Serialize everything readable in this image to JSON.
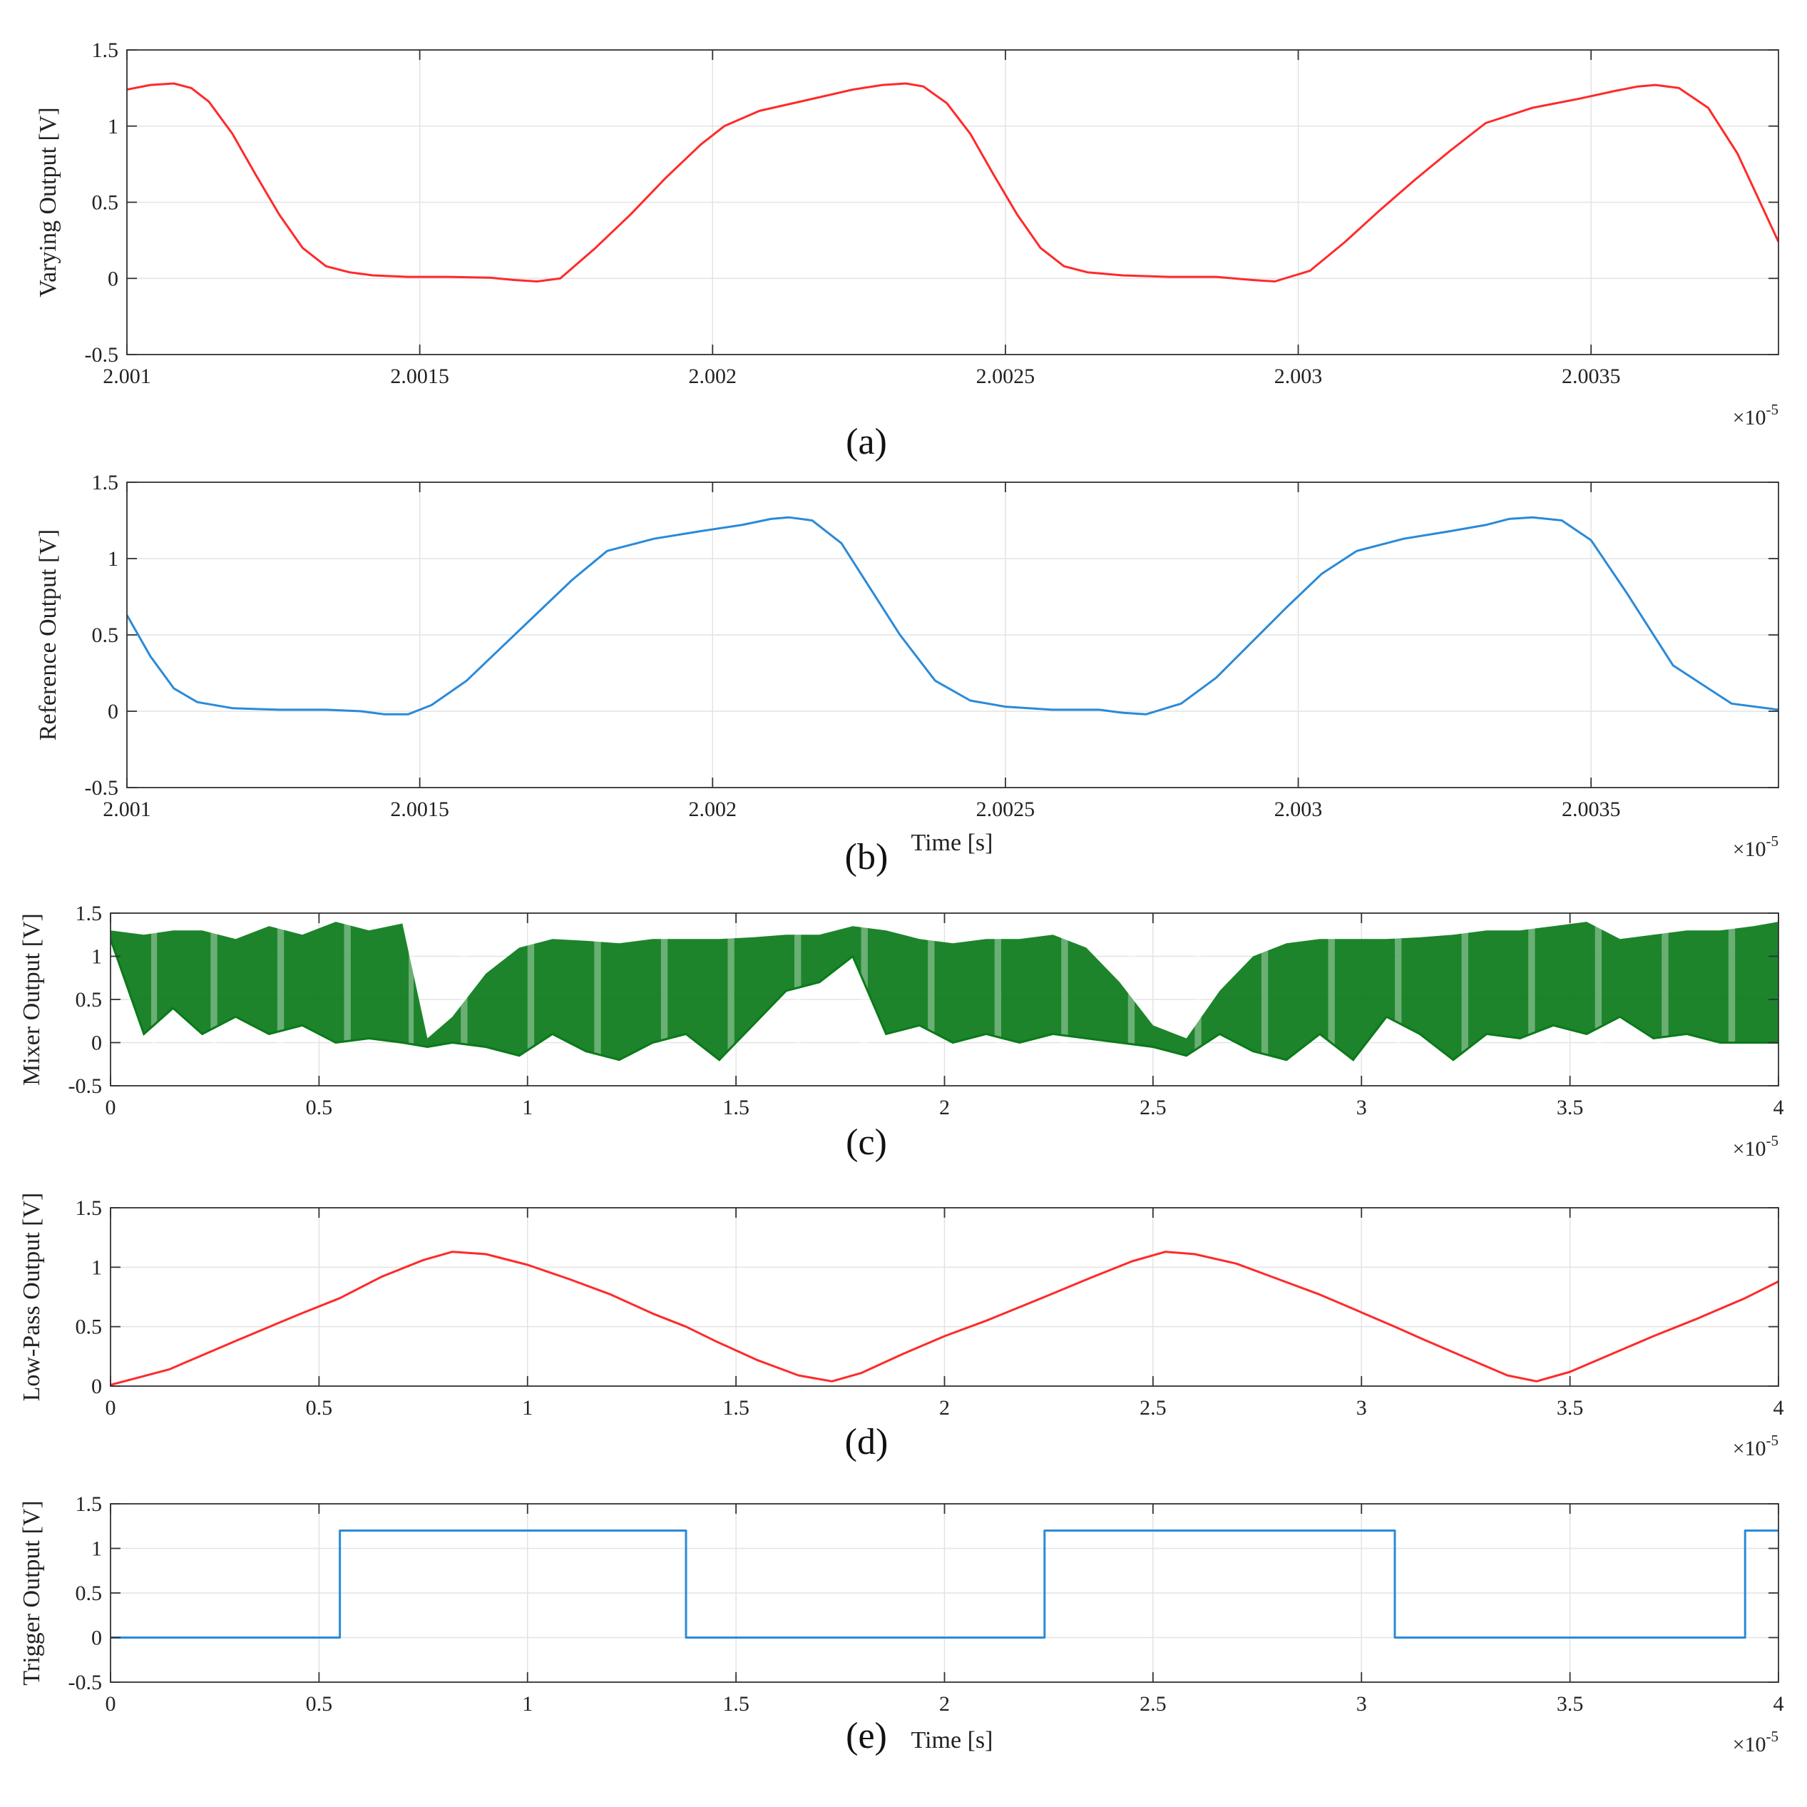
{
  "chart_data": [
    {
      "id": "a",
      "type": "line",
      "panel_label": "(a)",
      "xlabel": "",
      "ylabel": "Varying Output [V]",
      "xlim": [
        2.001,
        2.00382
      ],
      "ylim": [
        -0.5,
        1.5
      ],
      "xticks": [
        "2.001",
        "2.0015",
        "2.002",
        "2.0025",
        "2.003",
        "2.0035"
      ],
      "yticks": [
        "-0.5",
        "0",
        "0.5",
        "1",
        "1.5"
      ],
      "x_exponent": "×10",
      "x_exponent_power": "-5",
      "grid": true,
      "series": [
        {
          "color": "#ff2a2a",
          "x": [
            2.001,
            2.00104,
            2.00108,
            2.00111,
            2.00114,
            2.00118,
            2.00122,
            2.00126,
            2.0013,
            2.00134,
            2.00138,
            2.00142,
            2.00148,
            2.00155,
            2.00162,
            2.00166,
            2.0017,
            2.00174,
            2.0018,
            2.00186,
            2.00192,
            2.00198,
            2.00202,
            2.00208,
            2.00216,
            2.00224,
            2.00229,
            2.00233,
            2.00236,
            2.0024,
            2.00244,
            2.00248,
            2.00252,
            2.00256,
            2.0026,
            2.00264,
            2.0027,
            2.00278,
            2.00286,
            2.00292,
            2.00296,
            2.00302,
            2.00308,
            2.00314,
            2.0032,
            2.00326,
            2.00332,
            2.0034,
            2.00348,
            2.00354,
            2.00358,
            2.00361,
            2.00365,
            2.0037,
            2.00375,
            2.00382
          ],
          "values": [
            1.24,
            1.27,
            1.28,
            1.25,
            1.16,
            0.95,
            0.68,
            0.42,
            0.2,
            0.08,
            0.04,
            0.02,
            0.01,
            0.01,
            0.005,
            -0.01,
            -0.02,
            0.0,
            0.2,
            0.42,
            0.66,
            0.88,
            1.0,
            1.1,
            1.17,
            1.24,
            1.27,
            1.28,
            1.26,
            1.15,
            0.95,
            0.68,
            0.42,
            0.2,
            0.08,
            0.04,
            0.02,
            0.01,
            0.01,
            -0.01,
            -0.02,
            0.05,
            0.24,
            0.45,
            0.65,
            0.84,
            1.02,
            1.12,
            1.18,
            1.23,
            1.26,
            1.27,
            1.25,
            1.12,
            0.82,
            0.24
          ]
        }
      ]
    },
    {
      "id": "b",
      "type": "line",
      "panel_label": "(b)",
      "xlabel": "Time [s]",
      "ylabel": "Reference Output [V]",
      "xlim": [
        2.001,
        2.00382
      ],
      "ylim": [
        -0.5,
        1.5
      ],
      "xticks": [
        "2.001",
        "2.0015",
        "2.002",
        "2.0025",
        "2.003",
        "2.0035"
      ],
      "yticks": [
        "-0.5",
        "0",
        "0.5",
        "1",
        "1.5"
      ],
      "x_exponent": "×10",
      "x_exponent_power": "-5",
      "grid": true,
      "series": [
        {
          "color": "#2a8ad8",
          "x": [
            2.001,
            2.00104,
            2.00108,
            2.00112,
            2.00118,
            2.00126,
            2.00134,
            2.0014,
            2.00144,
            2.00148,
            2.00152,
            2.00158,
            2.00164,
            2.0017,
            2.00176,
            2.00182,
            2.0019,
            2.00198,
            2.00205,
            2.0021,
            2.00213,
            2.00217,
            2.00222,
            2.00227,
            2.00232,
            2.00238,
            2.00244,
            2.0025,
            2.00258,
            2.00266,
            2.0027,
            2.00274,
            2.0028,
            2.00286,
            2.00292,
            2.00298,
            2.00304,
            2.0031,
            2.00318,
            2.00326,
            2.00332,
            2.00336,
            2.0034,
            2.00345,
            2.0035,
            2.00356,
            2.00364,
            2.00374,
            2.00382
          ],
          "values": [
            0.63,
            0.36,
            0.15,
            0.06,
            0.02,
            0.01,
            0.01,
            0.0,
            -0.02,
            -0.02,
            0.04,
            0.2,
            0.42,
            0.64,
            0.86,
            1.05,
            1.13,
            1.18,
            1.22,
            1.26,
            1.27,
            1.25,
            1.1,
            0.8,
            0.5,
            0.2,
            0.07,
            0.03,
            0.01,
            0.01,
            -0.01,
            -0.02,
            0.05,
            0.22,
            0.45,
            0.68,
            0.9,
            1.05,
            1.13,
            1.18,
            1.22,
            1.26,
            1.27,
            1.25,
            1.12,
            0.78,
            0.3,
            0.05,
            0.01
          ]
        }
      ]
    },
    {
      "id": "c",
      "type": "area",
      "panel_label": "(c)",
      "xlabel": "",
      "ylabel": "Mixer Output [V]",
      "xlim": [
        0,
        4
      ],
      "ylim": [
        -0.5,
        1.5
      ],
      "xticks": [
        "0",
        "0.5",
        "1",
        "1.5",
        "2",
        "2.5",
        "3",
        "3.5",
        "4"
      ],
      "yticks": [
        "-0.5",
        "0",
        "0.5",
        "1",
        "1.5"
      ],
      "x_exponent": "×10",
      "x_exponent_power": "-5",
      "grid": true,
      "series": [
        {
          "color": "#0a7a1a",
          "x": [
            0,
            0.08,
            0.15,
            0.22,
            0.3,
            0.38,
            0.46,
            0.54,
            0.62,
            0.7,
            0.76,
            0.82,
            0.9,
            0.98,
            1.06,
            1.14,
            1.22,
            1.3,
            1.38,
            1.46,
            1.54,
            1.62,
            1.7,
            1.78,
            1.86,
            1.94,
            2.02,
            2.1,
            2.18,
            2.26,
            2.34,
            2.42,
            2.5,
            2.58,
            2.66,
            2.74,
            2.82,
            2.9,
            2.98,
            3.06,
            3.14,
            3.22,
            3.3,
            3.38,
            3.46,
            3.54,
            3.62,
            3.7,
            3.78,
            3.86,
            3.94,
            4.0
          ],
          "upper": [
            1.3,
            1.25,
            1.3,
            1.3,
            1.2,
            1.35,
            1.25,
            1.4,
            1.3,
            1.38,
            0.05,
            0.3,
            0.8,
            1.1,
            1.2,
            1.18,
            1.15,
            1.2,
            1.2,
            1.2,
            1.22,
            1.25,
            1.25,
            1.35,
            1.3,
            1.2,
            1.15,
            1.2,
            1.2,
            1.25,
            1.1,
            0.7,
            0.2,
            0.05,
            0.6,
            1.0,
            1.15,
            1.2,
            1.2,
            1.2,
            1.22,
            1.25,
            1.3,
            1.3,
            1.35,
            1.4,
            1.2,
            1.25,
            1.3,
            1.3,
            1.35,
            1.4
          ],
          "lower": [
            1.2,
            0.1,
            0.4,
            0.1,
            0.3,
            0.1,
            0.2,
            0.0,
            0.05,
            0.0,
            -0.05,
            0.0,
            -0.05,
            -0.15,
            0.1,
            -0.1,
            -0.2,
            0.0,
            0.1,
            -0.2,
            0.2,
            0.6,
            0.7,
            1.0,
            0.1,
            0.2,
            0.0,
            0.1,
            0.0,
            0.1,
            0.05,
            0.0,
            -0.05,
            -0.15,
            0.1,
            -0.1,
            -0.2,
            0.1,
            -0.2,
            0.3,
            0.1,
            -0.2,
            0.1,
            0.05,
            0.2,
            0.1,
            0.3,
            0.05,
            0.1,
            0.0,
            0.0,
            0.0
          ]
        }
      ]
    },
    {
      "id": "d",
      "type": "line",
      "panel_label": "(d)",
      "xlabel": "",
      "ylabel": "Low-Pass Output [V]",
      "xlim": [
        0,
        4
      ],
      "ylim": [
        0,
        1.5
      ],
      "xticks": [
        "0",
        "0.5",
        "1",
        "1.5",
        "2",
        "2.5",
        "3",
        "3.5",
        "4"
      ],
      "yticks": [
        "0",
        "0.5",
        "1",
        "1.5"
      ],
      "x_exponent": "×10",
      "x_exponent_power": "-5",
      "grid": true,
      "series": [
        {
          "color": "#ff2a2a",
          "x": [
            0,
            0.14,
            0.3,
            0.45,
            0.55,
            0.65,
            0.75,
            0.82,
            0.9,
            1.0,
            1.1,
            1.2,
            1.3,
            1.38,
            1.45,
            1.55,
            1.65,
            1.73,
            1.8,
            1.9,
            2.0,
            2.1,
            2.24,
            2.35,
            2.45,
            2.53,
            2.6,
            2.7,
            2.8,
            2.9,
            3.0,
            3.08,
            3.15,
            3.25,
            3.35,
            3.42,
            3.5,
            3.6,
            3.7,
            3.8,
            3.92,
            4.0
          ],
          "values": [
            0.01,
            0.14,
            0.38,
            0.6,
            0.74,
            0.92,
            1.06,
            1.13,
            1.11,
            1.02,
            0.9,
            0.77,
            0.61,
            0.5,
            0.38,
            0.22,
            0.09,
            0.04,
            0.11,
            0.27,
            0.42,
            0.55,
            0.75,
            0.91,
            1.05,
            1.13,
            1.11,
            1.03,
            0.9,
            0.77,
            0.62,
            0.5,
            0.39,
            0.24,
            0.09,
            0.04,
            0.12,
            0.27,
            0.42,
            0.56,
            0.74,
            0.88
          ]
        }
      ]
    },
    {
      "id": "e",
      "type": "line",
      "panel_label": "(e)",
      "xlabel": "Time [s]",
      "ylabel": "Trigger Output [V]",
      "xlim": [
        0,
        4
      ],
      "ylim": [
        -0.5,
        1.5
      ],
      "xticks": [
        "0",
        "0.5",
        "1",
        "1.5",
        "2",
        "2.5",
        "3",
        "3.5",
        "4"
      ],
      "yticks": [
        "-0.5",
        "0",
        "0.5",
        "1",
        "1.5"
      ],
      "x_exponent": "×10",
      "x_exponent_power": "-5",
      "grid": true,
      "series": [
        {
          "color": "#2a8ad8",
          "x": [
            0,
            0.55,
            0.55,
            1.38,
            1.38,
            2.24,
            2.24,
            3.08,
            3.08,
            3.92,
            3.92,
            4.0
          ],
          "values": [
            0,
            0,
            1.2,
            1.2,
            0,
            0,
            1.2,
            1.2,
            0,
            0,
            1.2,
            1.2
          ]
        }
      ]
    }
  ]
}
